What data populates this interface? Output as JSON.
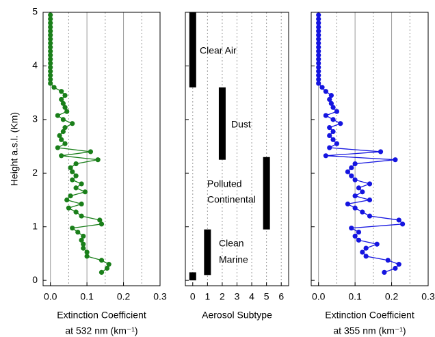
{
  "chart_data": [
    {
      "type": "profile",
      "xlabel": [
        "Extinction Coefficient",
        "at 532 nm (km⁻¹)"
      ],
      "ylabel": "Height a.s.l. (Km)",
      "xlim": [
        -0.02,
        0.3
      ],
      "xticks": [
        {
          "value": 0,
          "label": "0.0"
        },
        0.1,
        0.2,
        0.3
      ],
      "x_minor_grid": [
        0.05,
        0.15,
        0.25
      ],
      "ylim": [
        -0.1,
        5
      ],
      "yticks": [
        0,
        1,
        2,
        3,
        4,
        5
      ],
      "show_ytick_labels": true,
      "color": "#1a7f1a",
      "heights": [
        0.15,
        0.225,
        0.3,
        0.375,
        0.45,
        0.525,
        0.6,
        0.675,
        0.75,
        0.825,
        0.9,
        0.975,
        1.05,
        1.125,
        1.2,
        1.275,
        1.35,
        1.425,
        1.5,
        1.575,
        1.65,
        1.725,
        1.8,
        1.875,
        1.95,
        2.025,
        2.1,
        2.175,
        2.25,
        2.325,
        2.4,
        2.475,
        2.55,
        2.625,
        2.7,
        2.775,
        2.85,
        2.925,
        3,
        3.075,
        3.15,
        3.225,
        3.3,
        3.375,
        3.45,
        3.525,
        3.6,
        3.675,
        3.75,
        3.825,
        3.9,
        3.975,
        4.05,
        4.125,
        4.2,
        4.275,
        4.35,
        4.425,
        4.5,
        4.575,
        4.65,
        4.725,
        4.8,
        4.875,
        4.95
      ],
      "values": [
        0.14,
        0.155,
        0.16,
        0.14,
        0.1,
        0.1,
        0.09,
        0.09,
        0.085,
        0.09,
        0.075,
        0.06,
        0.14,
        0.135,
        0.085,
        0.07,
        0.05,
        0.085,
        0.045,
        0.055,
        0.095,
        0.07,
        0.085,
        0.06,
        0.07,
        0.06,
        0.055,
        0.07,
        0.13,
        0.03,
        0.11,
        0.02,
        0.04,
        0.03,
        0.025,
        0.035,
        0.04,
        0.06,
        0.035,
        0.02,
        0.045,
        0.04,
        0.035,
        0.03,
        0.04,
        0.03,
        0.01,
        0,
        0,
        0,
        0,
        0,
        0,
        0,
        0,
        0,
        0,
        0,
        0,
        0,
        0,
        0,
        0,
        0,
        0
      ]
    },
    {
      "type": "range_bar",
      "xlabel": [
        "Aerosol Subtype"
      ],
      "xlim": [
        -0.5,
        6.5
      ],
      "xticks": [
        0,
        1,
        2,
        3,
        4,
        5,
        6
      ],
      "ylim": [
        -0.1,
        5
      ],
      "yticks": [
        0,
        1,
        2,
        3,
        4,
        5
      ],
      "show_ytick_labels": false,
      "color": "#000000",
      "x": [
        0,
        2,
        5,
        1,
        0
      ],
      "low": [
        3.6,
        2.25,
        0.95,
        0.1,
        0
      ],
      "high": [
        5,
        3.6,
        2.3,
        0.95,
        0.15
      ],
      "annotations": [
        "Clear Air",
        "Dust",
        "Polluted",
        "Continental",
        "Clean",
        "Marine"
      ]
    },
    {
      "type": "profile",
      "xlabel": [
        "Extinction Coefficient",
        "at 355 nm (km⁻¹)"
      ],
      "xlim": [
        -0.02,
        0.3
      ],
      "xticks": [
        {
          "value": 0,
          "label": "0.0"
        },
        0.1,
        0.2,
        0.3
      ],
      "x_minor_grid": [
        0.05,
        0.15,
        0.25
      ],
      "ylim": [
        -0.1,
        5
      ],
      "yticks": [
        0,
        1,
        2,
        3,
        4,
        5
      ],
      "show_ytick_labels": false,
      "color": "#1515e0",
      "heights": [
        0.15,
        0.225,
        0.3,
        0.375,
        0.45,
        0.525,
        0.6,
        0.675,
        0.75,
        0.825,
        0.9,
        0.975,
        1.05,
        1.125,
        1.2,
        1.275,
        1.35,
        1.425,
        1.5,
        1.575,
        1.65,
        1.725,
        1.8,
        1.875,
        1.95,
        2.025,
        2.1,
        2.175,
        2.25,
        2.325,
        2.4,
        2.475,
        2.55,
        2.625,
        2.7,
        2.775,
        2.85,
        2.925,
        3,
        3.075,
        3.15,
        3.225,
        3.3,
        3.375,
        3.45,
        3.525,
        3.6,
        3.675,
        3.75,
        3.825,
        3.9,
        3.975,
        4.05,
        4.125,
        4.2,
        4.275,
        4.35,
        4.425,
        4.5,
        4.575,
        4.65,
        4.725,
        4.8,
        4.875,
        4.95
      ],
      "values": [
        0.18,
        0.21,
        0.22,
        0.19,
        0.13,
        0.12,
        0.13,
        0.16,
        0.11,
        0.1,
        0.11,
        0.09,
        0.23,
        0.22,
        0.14,
        0.12,
        0.1,
        0.08,
        0.14,
        0.1,
        0.12,
        0.11,
        0.14,
        0.1,
        0.09,
        0.08,
        0.09,
        0.1,
        0.21,
        0.02,
        0.17,
        0.03,
        0.05,
        0.04,
        0.03,
        0.04,
        0.03,
        0.06,
        0.04,
        0.02,
        0.05,
        0.04,
        0.035,
        0.03,
        0.035,
        0.02,
        0.01,
        0,
        0,
        0,
        0,
        0,
        0,
        0,
        0,
        0,
        0,
        0,
        0,
        0,
        0,
        0,
        0,
        0,
        0
      ]
    }
  ]
}
